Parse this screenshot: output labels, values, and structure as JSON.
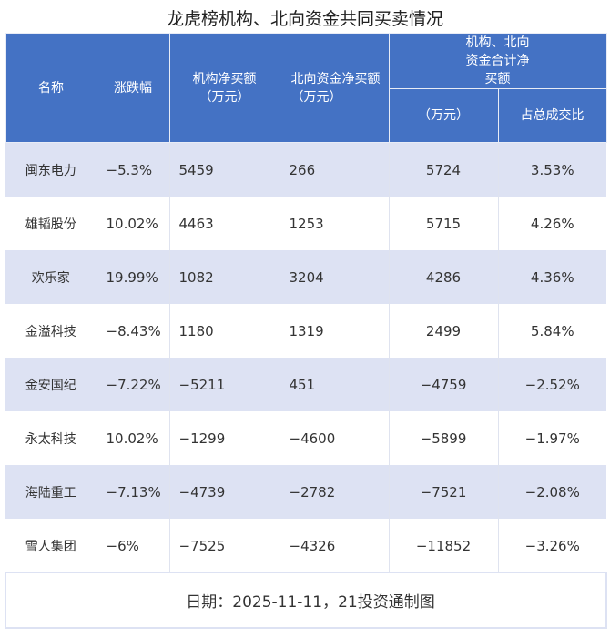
{
  "title": "龙虎榜机构、北向资金共同买卖情况",
  "header": {
    "name": "名称",
    "change": "涨跌幅",
    "inst": "机构净买额（万元）",
    "north": "北向资金净买额（万元）",
    "combined": "机构、北向资金合计净买额",
    "combined_amount": "（万元）",
    "combined_ratio": "占总成交比"
  },
  "rows": [
    {
      "name": "闽东电力",
      "change": "−5.3%",
      "inst": "5459",
      "north": "266",
      "total": "5724",
      "ratio": "3.53%"
    },
    {
      "name": "雄韬股份",
      "change": "10.02%",
      "inst": "4463",
      "north": "1253",
      "total": "5715",
      "ratio": "4.26%"
    },
    {
      "name": "欢乐家",
      "change": "19.99%",
      "inst": "1082",
      "north": "3204",
      "total": "4286",
      "ratio": "4.36%"
    },
    {
      "name": "金溢科技",
      "change": "−8.43%",
      "inst": "1180",
      "north": "1319",
      "total": "2499",
      "ratio": "5.84%"
    },
    {
      "name": "金安国纪",
      "change": "−7.22%",
      "inst": "−5211",
      "north": "451",
      "total": "−4759",
      "ratio": "−2.52%"
    },
    {
      "name": "永太科技",
      "change": "10.02%",
      "inst": "−1299",
      "north": "−4600",
      "total": "−5899",
      "ratio": "−1.97%"
    },
    {
      "name": "海陆重工",
      "change": "−7.13%",
      "inst": "−4739",
      "north": "−2782",
      "total": "−7521",
      "ratio": "−2.08%"
    },
    {
      "name": "雪人集团",
      "change": "−6%",
      "inst": "−7525",
      "north": "−4326",
      "total": "−11852",
      "ratio": "−3.26%"
    }
  ],
  "footer": "日期：2025-11-11，21投资通制图",
  "colors": {
    "header": "#4472c4",
    "stripe": "#dde2f3"
  }
}
